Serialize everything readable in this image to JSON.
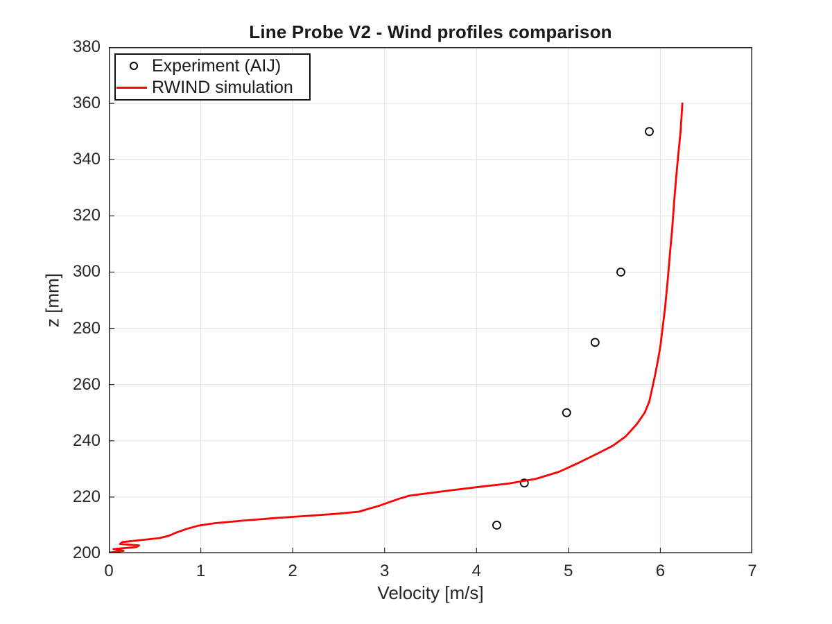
{
  "chart_data": {
    "type": "line+scatter",
    "title": "Line Probe V2 - Wind profiles comparison",
    "xlabel": "Velocity [m/s]",
    "ylabel": "z [mm]",
    "xlim": [
      0,
      7
    ],
    "ylim": [
      200,
      380
    ],
    "xticks": [
      0,
      1,
      2,
      3,
      4,
      5,
      6,
      7
    ],
    "yticks": [
      200,
      220,
      240,
      260,
      280,
      300,
      320,
      340,
      360,
      380
    ],
    "grid": true,
    "legend_position": "top-left",
    "colors": {
      "experiment": "#000000",
      "simulation": "#ff0000",
      "grid": "#e0e0e0",
      "axis": "#262626",
      "text": "#262626",
      "background": "#ffffff"
    },
    "series": [
      {
        "name": "Experiment (AIJ)",
        "type": "scatter",
        "marker": "circle",
        "color": "#000000",
        "x": [
          4.22,
          4.52,
          4.98,
          5.29,
          5.57,
          5.88
        ],
        "y": [
          210,
          225,
          250,
          275,
          300,
          350
        ]
      },
      {
        "name": "RWIND simulation",
        "type": "line",
        "color": "#ff0000",
        "x": [
          0.02,
          0.16,
          0.05,
          0.3,
          0.33,
          0.12,
          0.15,
          0.38,
          0.55,
          0.65,
          0.72,
          0.85,
          0.97,
          1.15,
          1.45,
          1.8,
          2.15,
          2.5,
          2.72,
          2.95,
          3.15,
          3.27,
          3.65,
          4.0,
          4.35,
          4.65,
          4.9,
          5.1,
          5.3,
          5.48,
          5.62,
          5.74,
          5.83,
          5.88,
          5.91,
          5.94,
          5.97,
          6.0,
          6.02,
          6.05,
          6.08,
          6.1,
          6.13,
          6.15,
          6.17,
          6.19,
          6.22,
          6.24
        ],
        "y": [
          200.3,
          200.9,
          201.5,
          202.2,
          202.8,
          203.3,
          204.0,
          204.8,
          205.4,
          206.2,
          207.2,
          208.7,
          209.8,
          210.7,
          211.6,
          212.5,
          213.3,
          214.1,
          214.8,
          217.0,
          219.3,
          220.5,
          222.1,
          223.5,
          224.8,
          226.5,
          229.0,
          232.0,
          235.2,
          238.2,
          241.5,
          245.8,
          250.0,
          254.0,
          258.5,
          263.0,
          268.0,
          273.5,
          279.0,
          287.0,
          297.0,
          305.0,
          316.0,
          325.0,
          333.0,
          340.0,
          350.0,
          360.0
        ]
      }
    ]
  }
}
